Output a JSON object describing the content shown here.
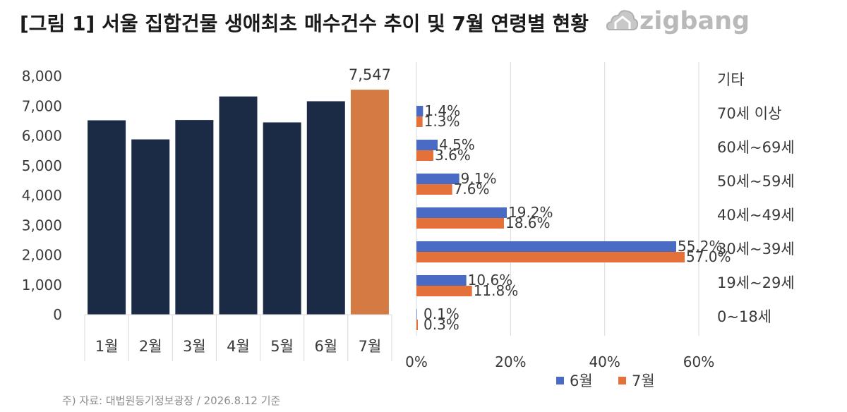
{
  "header": {
    "title": "[그림 1] 서울 집합건물 생애최초 매수건수 추이 및 7월 연령별 현황",
    "logo_text": "zigbang",
    "logo_color": "#b9b9b9"
  },
  "footnote": "주) 자료: 대법원등기정보광장 / 2026.8.12 기준",
  "chart_data": [
    {
      "type": "bar",
      "categories": [
        "1월",
        "2월",
        "3월",
        "4월",
        "5월",
        "6월",
        "7월"
      ],
      "values": [
        6520,
        5880,
        6530,
        7320,
        6450,
        7160,
        7547
      ],
      "ylim": [
        0,
        8000
      ],
      "yticks": [
        0,
        1000,
        2000,
        3000,
        4000,
        5000,
        6000,
        7000,
        8000
      ],
      "ytick_labels": [
        "0",
        "1,000",
        "2,000",
        "3,000",
        "4,000",
        "5,000",
        "6,000",
        "7,000",
        "8,000"
      ],
      "data_labels": [
        {
          "category": "7월",
          "text": "7,547"
        }
      ],
      "colors": {
        "default": "#1b2a45",
        "highlight": "#d47a43"
      },
      "highlight_category": "7월",
      "grid": false
    },
    {
      "type": "bar",
      "orientation": "horizontal",
      "categories": [
        "기타",
        "70세 이상",
        "60세~69세",
        "50세~59세",
        "40세~49세",
        "30세~39세",
        "19세~29세",
        "0~18세"
      ],
      "series": [
        {
          "name": "6월",
          "color": "#4a6bc4",
          "values": [
            0,
            1.4,
            4.5,
            9.1,
            19.2,
            55.2,
            10.6,
            0.1
          ],
          "labels": [
            "",
            "1.4%",
            "4.5%",
            "9.1%",
            "19.2%",
            "55.2%",
            "10.6%",
            "0.1%"
          ]
        },
        {
          "name": "7월",
          "color": "#e4713a",
          "values": [
            0,
            1.3,
            3.6,
            7.6,
            18.6,
            57.0,
            11.8,
            0.3
          ],
          "labels": [
            "",
            "1.3%",
            "3.6%",
            "7.6%",
            "18.6%",
            "57.0%",
            "11.8%",
            "0.3%"
          ]
        }
      ],
      "xlim": [
        0,
        60
      ],
      "xticks": [
        0,
        20,
        40,
        60
      ],
      "xtick_labels": [
        "0%",
        "20%",
        "40%",
        "60%"
      ],
      "grid": true,
      "legend": "bottom"
    }
  ]
}
